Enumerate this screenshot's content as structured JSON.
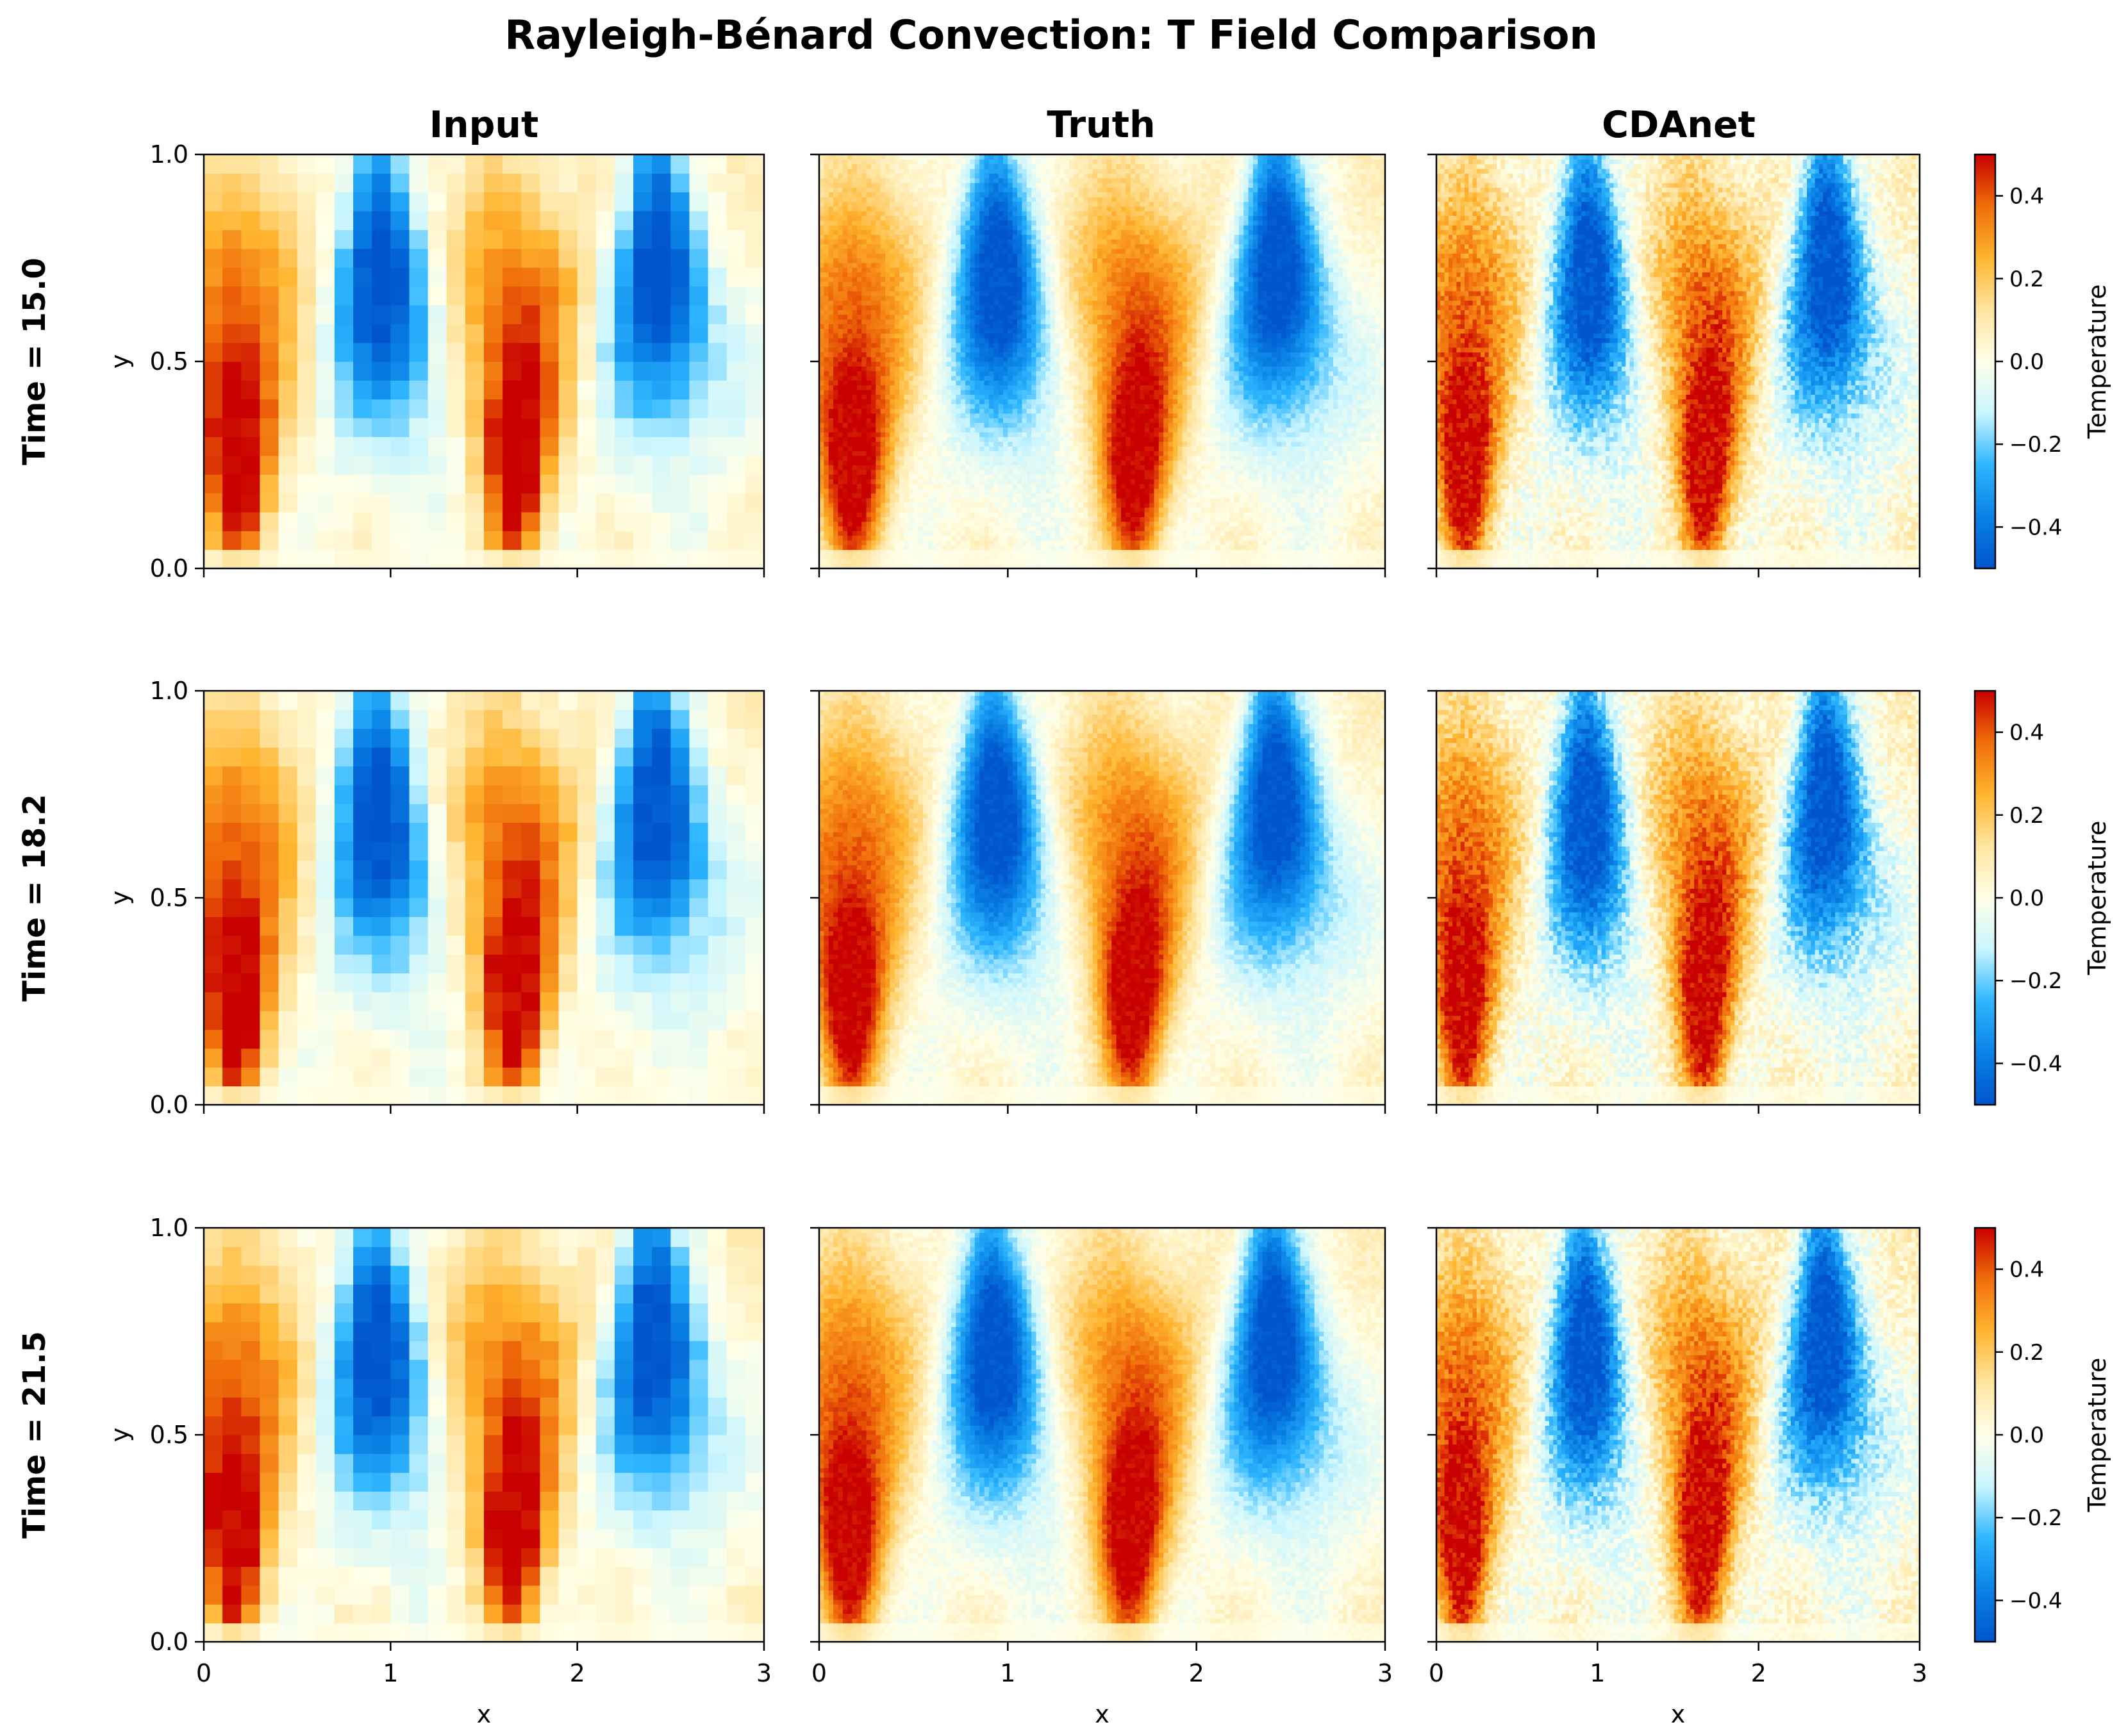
{
  "title": "Rayleigh-Bénard Convection: T Field Comparison",
  "column_titles": [
    "Input",
    "Truth",
    "CDAnet"
  ],
  "row_labels": [
    "Time = 15.0",
    "Time = 18.2",
    "Time = 21.5"
  ],
  "x_label": "x",
  "y_label": "y",
  "colorbar_label": "Temperature",
  "x_ticks": [
    "0",
    "1",
    "2",
    "3"
  ],
  "y_ticks": [
    "0.0",
    "0.5",
    "1.0"
  ],
  "colorbar_ticks": [
    "−0.4",
    "−0.2",
    "0.0",
    "0.2",
    "0.4"
  ],
  "chart_data": {
    "type": "heatmap",
    "title": "Rayleigh-Bénard Convection: T Field Comparison",
    "xlabel": "x",
    "ylabel": "y",
    "xlim": [
      0,
      3
    ],
    "ylim": [
      0,
      1
    ],
    "x_ticks": [
      0,
      1,
      2,
      3
    ],
    "y_ticks": [
      0.0,
      0.5,
      1.0
    ],
    "colorbar": {
      "label": "Temperature",
      "range": [
        -0.5,
        0.5
      ],
      "ticks": [
        -0.4,
        -0.2,
        0.0,
        0.2,
        0.4
      ],
      "colors": [
        "#0055cc",
        "#0a82e6",
        "#2db6ff",
        "#c9f5ff",
        "#ffffe8",
        "#ffe4a0",
        "#ffb530",
        "#f06e0a",
        "#c80000"
      ]
    },
    "columns": [
      "Input",
      "Truth",
      "CDAnet"
    ],
    "times": [
      15.0,
      18.2,
      21.5
    ],
    "grid": {
      "Input": [
        30,
        22
      ],
      "Truth": [
        120,
        88
      ],
      "CDAnet": [
        120,
        88
      ]
    },
    "field_structure": {
      "hot_plume_centers_x": [
        0.18,
        1.67
      ],
      "cold_plume_centers_x": [
        0.92,
        2.4
      ],
      "hot_plume_peak_y": 0.27,
      "cold_plume_peak_y": 0.73,
      "peak_hot": 0.5,
      "peak_cold": -0.5
    },
    "noise_level": {
      "Input": 0.03,
      "Truth": 0.035,
      "CDAnet": 0.07
    }
  }
}
